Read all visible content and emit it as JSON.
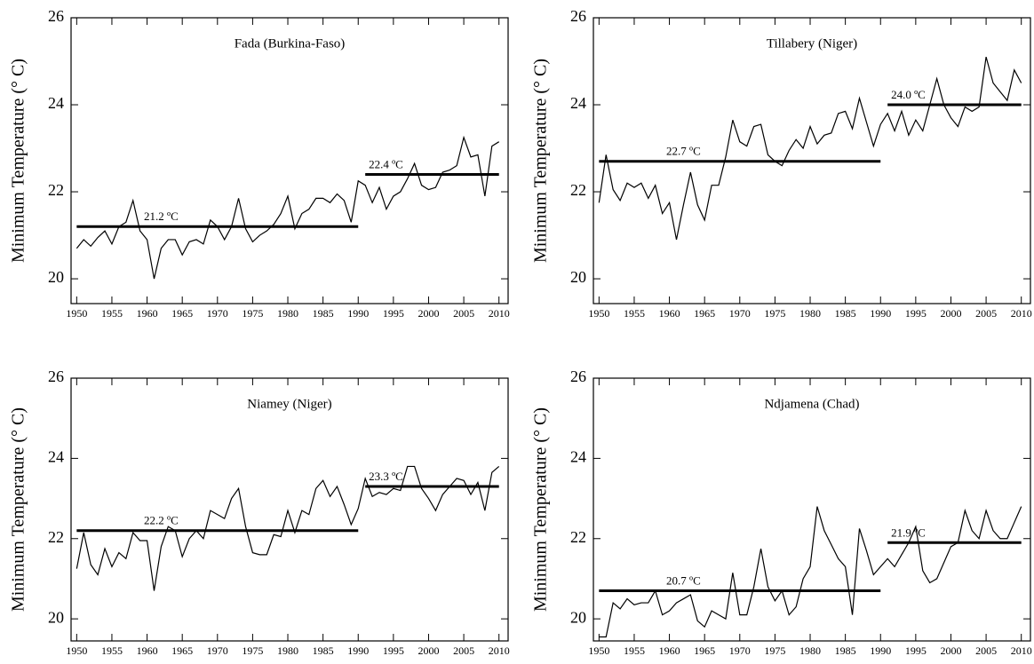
{
  "chart_data": [
    {
      "type": "line",
      "title": "Fada (Burkina-Faso)",
      "y_label": "Minimum Temperature (° C)",
      "color": "#000000",
      "x": [
        1950,
        1951,
        1952,
        1953,
        1954,
        1955,
        1956,
        1957,
        1958,
        1959,
        1960,
        1961,
        1962,
        1963,
        1964,
        1965,
        1966,
        1967,
        1968,
        1969,
        1970,
        1971,
        1972,
        1973,
        1974,
        1975,
        1976,
        1977,
        1978,
        1979,
        1980,
        1981,
        1982,
        1983,
        1984,
        1985,
        1986,
        1987,
        1988,
        1989,
        1990,
        1991,
        1992,
        1993,
        1994,
        1995,
        1996,
        1997,
        1998,
        1999,
        2000,
        2001,
        2002,
        2003,
        2004,
        2005,
        2006,
        2007,
        2008,
        2009,
        2010
      ],
      "values": [
        20.7,
        20.9,
        20.75,
        20.95,
        21.1,
        20.8,
        21.2,
        21.3,
        21.8,
        21.1,
        20.9,
        20.0,
        20.7,
        20.9,
        20.9,
        20.55,
        20.85,
        20.9,
        20.8,
        21.35,
        21.2,
        20.9,
        21.2,
        21.85,
        21.15,
        20.85,
        21.0,
        21.1,
        21.25,
        21.5,
        21.9,
        21.15,
        21.5,
        21.6,
        21.85,
        21.85,
        21.75,
        21.95,
        21.8,
        21.3,
        22.25,
        22.15,
        21.75,
        22.1,
        21.6,
        21.9,
        22.0,
        22.3,
        22.65,
        22.15,
        22.05,
        22.1,
        22.45,
        22.5,
        22.6,
        23.25,
        22.8,
        22.85,
        21.9,
        23.05,
        23.15
      ],
      "segments": [
        {
          "x": [
            1950,
            1990
          ],
          "value": 21.2,
          "label": "21.2 ºC"
        },
        {
          "x": [
            1991,
            2010
          ],
          "value": 22.4,
          "label": "22.4 ºC"
        }
      ],
      "xlim": [
        1949.2,
        2011.3
      ],
      "ylim": [
        19.43,
        26
      ],
      "xticks": [
        1950,
        1955,
        1960,
        1965,
        1970,
        1975,
        1980,
        1985,
        1990,
        1995,
        2000,
        2005,
        2010
      ],
      "yticks": [
        20,
        22,
        24,
        26
      ]
    },
    {
      "type": "line",
      "title": "Tillabery (Niger)",
      "y_label": "Minimum Temperature (° C)",
      "color": "#000000",
      "x": [
        1950,
        1951,
        1952,
        1953,
        1954,
        1955,
        1956,
        1957,
        1958,
        1959,
        1960,
        1961,
        1962,
        1963,
        1964,
        1965,
        1966,
        1967,
        1968,
        1969,
        1970,
        1971,
        1972,
        1973,
        1974,
        1975,
        1976,
        1977,
        1978,
        1979,
        1980,
        1981,
        1982,
        1983,
        1984,
        1985,
        1986,
        1987,
        1988,
        1989,
        1990,
        1991,
        1992,
        1993,
        1994,
        1995,
        1996,
        1997,
        1998,
        1999,
        2000,
        2001,
        2002,
        2003,
        2004,
        2005,
        2006,
        2007,
        2008,
        2009,
        2010
      ],
      "values": [
        21.75,
        22.85,
        22.05,
        21.8,
        22.2,
        22.1,
        22.2,
        21.85,
        22.15,
        21.5,
        21.75,
        20.9,
        21.7,
        22.45,
        21.7,
        21.35,
        22.15,
        22.15,
        22.8,
        23.65,
        23.15,
        23.05,
        23.5,
        23.55,
        22.85,
        22.7,
        22.6,
        22.95,
        23.2,
        23.0,
        23.5,
        23.1,
        23.3,
        23.35,
        23.8,
        23.85,
        23.45,
        24.15,
        23.6,
        23.05,
        23.55,
        23.8,
        23.4,
        23.85,
        23.3,
        23.65,
        23.4,
        24.0,
        24.6,
        24.0,
        23.7,
        23.5,
        23.95,
        23.85,
        23.95,
        25.1,
        24.5,
        24.3,
        24.1,
        24.8,
        24.5
      ],
      "segments": [
        {
          "x": [
            1950,
            1990
          ],
          "value": 22.7,
          "label": "22.7 ºC"
        },
        {
          "x": [
            1991,
            2010
          ],
          "value": 24.0,
          "label": "24.0 ºC"
        }
      ],
      "xlim": [
        1949.2,
        2011.3
      ],
      "ylim": [
        19.43,
        26
      ],
      "xticks": [
        1950,
        1955,
        1960,
        1965,
        1970,
        1975,
        1980,
        1985,
        1990,
        1995,
        2000,
        2005,
        2010
      ],
      "yticks": [
        20,
        22,
        24,
        26
      ]
    },
    {
      "type": "line",
      "title": "Niamey (Niger)",
      "y_label": "Minimum Temperature (° C)",
      "color": "#000000",
      "x": [
        1950,
        1951,
        1952,
        1953,
        1954,
        1955,
        1956,
        1957,
        1958,
        1959,
        1960,
        1961,
        1962,
        1963,
        1964,
        1965,
        1966,
        1967,
        1968,
        1969,
        1970,
        1971,
        1972,
        1973,
        1974,
        1975,
        1976,
        1977,
        1978,
        1979,
        1980,
        1981,
        1982,
        1983,
        1984,
        1985,
        1986,
        1987,
        1988,
        1989,
        1990,
        1991,
        1992,
        1993,
        1994,
        1995,
        1996,
        1997,
        1998,
        1999,
        2000,
        2001,
        2002,
        2003,
        2004,
        2005,
        2006,
        2007,
        2008,
        2009,
        2010
      ],
      "values": [
        21.25,
        22.15,
        21.35,
        21.1,
        21.75,
        21.3,
        21.65,
        21.5,
        22.15,
        21.95,
        21.95,
        20.7,
        21.8,
        22.3,
        22.2,
        21.55,
        22.0,
        22.2,
        22.0,
        22.7,
        22.6,
        22.5,
        23.0,
        23.25,
        22.3,
        21.65,
        21.6,
        21.6,
        22.1,
        22.05,
        22.7,
        22.15,
        22.7,
        22.6,
        23.25,
        23.45,
        23.05,
        23.3,
        22.85,
        22.35,
        22.75,
        23.5,
        23.05,
        23.15,
        23.1,
        23.25,
        23.2,
        23.8,
        23.8,
        23.25,
        23.0,
        22.7,
        23.1,
        23.3,
        23.5,
        23.45,
        23.1,
        23.4,
        22.7,
        23.65,
        23.8
      ],
      "segments": [
        {
          "x": [
            1950,
            1990
          ],
          "value": 22.2,
          "label": "22.2 ºC"
        },
        {
          "x": [
            1991,
            2010
          ],
          "value": 23.3,
          "label": "23.3 ºC"
        }
      ],
      "xlim": [
        1949.2,
        2011.3
      ],
      "ylim": [
        19.45,
        26
      ],
      "xticks": [
        1950,
        1955,
        1960,
        1965,
        1970,
        1975,
        1980,
        1985,
        1990,
        1995,
        2000,
        2005,
        2010
      ],
      "yticks": [
        20,
        22,
        24,
        26
      ]
    },
    {
      "type": "line",
      "title": "Ndjamena (Chad)",
      "y_label": "Minimum Temperature (° C)",
      "color": "#000000",
      "x": [
        1950,
        1951,
        1952,
        1953,
        1954,
        1955,
        1956,
        1957,
        1958,
        1959,
        1960,
        1961,
        1962,
        1963,
        1964,
        1965,
        1966,
        1967,
        1968,
        1969,
        1970,
        1971,
        1972,
        1973,
        1974,
        1975,
        1976,
        1977,
        1978,
        1979,
        1980,
        1981,
        1982,
        1983,
        1984,
        1985,
        1986,
        1987,
        1988,
        1989,
        1990,
        1991,
        1992,
        1993,
        1994,
        1995,
        1996,
        1997,
        1998,
        1999,
        2000,
        2001,
        2002,
        2003,
        2004,
        2005,
        2006,
        2007,
        2008,
        2009,
        2010
      ],
      "values": [
        19.55,
        19.55,
        20.4,
        20.25,
        20.5,
        20.35,
        20.4,
        20.4,
        20.7,
        20.1,
        20.2,
        20.4,
        20.5,
        20.6,
        19.95,
        19.8,
        20.2,
        20.1,
        20.0,
        21.15,
        20.1,
        20.1,
        20.8,
        21.75,
        20.8,
        20.45,
        20.7,
        20.1,
        20.3,
        21.0,
        21.3,
        22.8,
        22.2,
        21.85,
        21.5,
        21.3,
        20.1,
        22.25,
        21.7,
        21.1,
        21.3,
        21.5,
        21.3,
        21.6,
        21.9,
        22.3,
        21.2,
        20.9,
        21.0,
        21.4,
        21.8,
        21.9,
        22.7,
        22.2,
        22.0,
        22.7,
        22.2,
        22.0,
        22.0,
        22.4,
        22.8
      ],
      "segments": [
        {
          "x": [
            1950,
            1990
          ],
          "value": 20.7,
          "label": "20.7 ºC"
        },
        {
          "x": [
            1991,
            2010
          ],
          "value": 21.9,
          "label": "21.9 ºC"
        }
      ],
      "xlim": [
        1949.2,
        2011.3
      ],
      "ylim": [
        19.45,
        26
      ],
      "xticks": [
        1950,
        1955,
        1960,
        1965,
        1970,
        1975,
        1980,
        1985,
        1990,
        1995,
        2000,
        2005,
        2010
      ],
      "yticks": [
        20,
        22,
        24,
        26
      ]
    }
  ]
}
